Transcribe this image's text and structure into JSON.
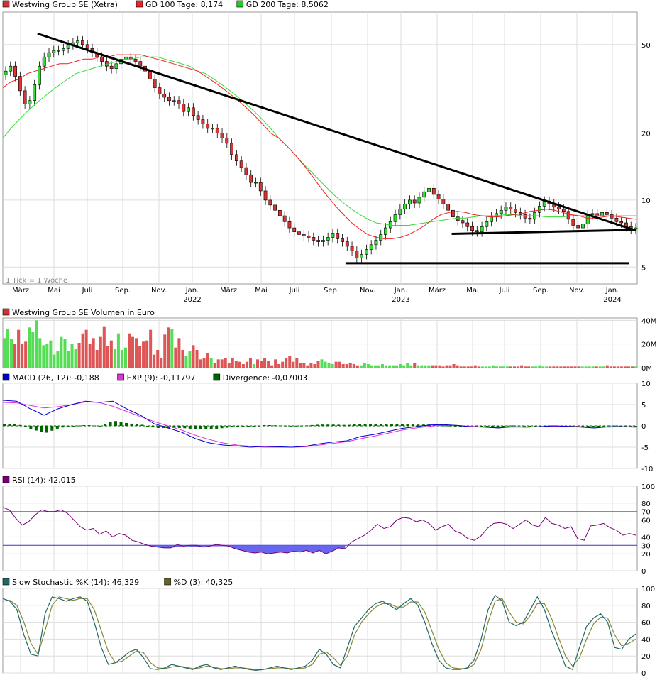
{
  "chart_data": [
    {
      "type": "candlestick",
      "panel": "price",
      "scale": "log",
      "ylim": [
        4.2,
        70
      ],
      "yticks": [
        5,
        10,
        20,
        50
      ],
      "legend": [
        {
          "label": "Westwing Group SE (Xetra)",
          "color": "#cc3333"
        },
        {
          "label": "GD 100 Tage: 8,174",
          "color": "#ee2222"
        },
        {
          "label": "GD 200 Tage: 8,5062",
          "color": "#22cc22"
        }
      ],
      "note": "1 Tick = 1 Woche",
      "x_month_labels": [
        "März",
        "Mai",
        "Juli",
        "Sep.",
        "Nov.",
        "Jan.",
        "März",
        "Mai",
        "Juli",
        "Sep.",
        "Nov.",
        "Jan.",
        "März",
        "Mai",
        "Juli",
        "Sep.",
        "Nov.",
        "Jan."
      ],
      "x_year_labels": [
        "2022",
        "2023",
        "2024"
      ],
      "close": [
        38,
        40,
        36,
        31,
        27,
        28,
        33,
        40,
        44,
        46,
        47,
        47,
        48,
        50,
        51,
        52,
        50,
        48,
        46,
        44,
        42,
        40,
        39,
        41,
        43,
        44,
        43,
        42,
        40,
        38,
        35,
        32,
        30,
        29,
        28,
        28,
        27,
        25,
        26,
        24,
        23,
        22,
        21,
        21,
        20,
        19,
        18,
        16,
        15,
        14,
        13,
        12,
        12,
        11,
        10,
        9.5,
        9,
        8.5,
        8,
        7.5,
        7.2,
        7,
        6.9,
        6.8,
        6.6,
        6.5,
        6.6,
        6.8,
        7.1,
        6.7,
        6.5,
        6.2,
        5.9,
        5.5,
        5.7,
        6,
        6.3,
        6.6,
        7,
        7.5,
        8,
        8.6,
        9.1,
        9.6,
        10,
        9.7,
        10.3,
        10.9,
        11.3,
        10.6,
        10.1,
        9.6,
        9,
        8.4,
        8.1,
        7.9,
        7.6,
        7.3,
        7.2,
        7.6,
        8,
        8.4,
        8.7,
        9,
        9.3,
        9.1,
        8.8,
        8.6,
        8.3,
        8.2,
        8.8,
        9.4,
        9.9,
        9.6,
        9.3,
        9.1,
        8.9,
        8.2,
        7.7,
        7.5,
        7.8,
        8.6,
        8.7,
        8.5,
        8.8,
        8.6,
        8.3,
        8,
        7.9,
        7.6,
        7.4,
        7.5
      ],
      "gd100": [
        32,
        34,
        35,
        37,
        38,
        39,
        40,
        41,
        41,
        42,
        43,
        43,
        44,
        44,
        45,
        45,
        45,
        45,
        44,
        43,
        42,
        41,
        40,
        39,
        38,
        36,
        34,
        32,
        30,
        28,
        26,
        24,
        22,
        20,
        19,
        17.5,
        16,
        14.5,
        13,
        11.6,
        10.4,
        9.4,
        8.6,
        7.9,
        7.4,
        7,
        6.8,
        6.7,
        6.7,
        6.8,
        7,
        7.3,
        7.7,
        8.2,
        8.6,
        8.8,
        8.9,
        8.8,
        8.6,
        8.5,
        8.4,
        8.4,
        8.5,
        8.6,
        8.7,
        8.9,
        9,
        9.1,
        9,
        8.8,
        8.6,
        8.5,
        8.3,
        8.3,
        8.4,
        8.5,
        8.4,
        8.3,
        8.2
      ],
      "gd200": [
        19,
        21,
        23,
        25,
        27,
        29,
        31,
        33,
        35,
        37,
        38,
        39,
        40,
        41,
        42,
        43,
        43,
        44,
        44,
        44,
        43,
        42,
        41,
        40,
        38,
        37,
        35,
        33,
        31,
        29,
        27,
        25,
        23,
        21,
        19,
        17.5,
        16,
        14.6,
        13.4,
        12.3,
        11.3,
        10.4,
        9.7,
        9.1,
        8.6,
        8.2,
        7.9,
        7.8,
        7.7,
        7.7,
        7.7,
        7.8,
        7.9,
        8,
        8.1,
        8.2,
        8.3,
        8.3,
        8.4,
        8.5,
        8.5,
        8.5,
        8.6,
        8.6,
        8.5,
        8.5,
        8.5,
        8.4,
        8.4,
        8.4,
        8.5,
        8.5,
        8.5,
        8.5,
        8.5,
        8.5,
        8.5,
        8.5,
        8.5
      ],
      "trendlines": [
        {
          "from": [
            9,
            56
          ],
          "to": [
            178,
            7.3
          ]
        },
        {
          "from": [
            126,
            7.05
          ],
          "to": [
            178,
            7.35
          ]
        },
        {
          "from": [
            96,
            5.2
          ],
          "to": [
            176,
            5.2
          ]
        }
      ]
    },
    {
      "type": "bar",
      "panel": "volume",
      "legend": [
        {
          "label": "Westwing Group SE Volumen in Euro",
          "color": "#cc3333"
        }
      ],
      "yticks": [
        "0M",
        "20M",
        "40M"
      ],
      "ylim": [
        0,
        42
      ],
      "values": [
        25,
        33,
        24,
        20,
        32,
        20,
        22,
        34,
        30,
        40,
        25,
        19,
        20,
        23,
        11,
        14,
        26,
        24,
        14,
        20,
        16,
        21,
        29,
        32,
        20,
        25,
        15,
        26,
        35,
        18,
        23,
        16,
        29,
        15,
        17,
        29,
        26,
        25,
        18,
        22,
        23,
        32,
        11,
        15,
        8,
        28,
        34,
        33,
        17,
        25,
        15,
        10,
        14,
        19,
        15,
        7,
        8,
        12,
        8,
        4,
        7,
        7,
        8,
        4,
        8,
        6,
        5,
        3,
        5,
        8,
        3,
        7,
        6,
        8,
        6,
        2,
        7,
        3,
        5,
        8,
        10,
        5,
        8,
        4,
        4,
        2,
        4,
        3,
        6,
        7,
        5,
        4,
        3,
        5,
        5,
        3,
        3,
        4,
        3,
        2,
        2,
        4,
        3,
        2,
        2,
        2,
        3,
        2,
        2,
        2,
        2,
        3,
        2,
        4,
        2,
        4,
        2,
        2,
        2,
        2,
        2,
        2,
        2,
        1,
        2,
        2,
        3,
        2,
        1,
        1,
        1,
        1,
        2,
        1,
        1,
        1,
        1,
        2,
        1,
        1,
        1,
        1,
        1,
        1,
        1,
        2,
        1,
        1,
        1,
        1,
        2,
        1,
        1,
        1,
        1,
        1,
        1,
        1,
        1,
        1,
        1,
        1,
        1,
        1,
        1,
        1,
        1,
        1,
        1,
        2,
        1,
        1,
        1,
        1,
        1,
        1,
        1,
        1
      ]
    },
    {
      "type": "line",
      "panel": "macd",
      "legend": [
        {
          "label": "MACD (26, 12): -0,188",
          "color": "#0000cc"
        },
        {
          "label": "EXP (9): -0,11797",
          "color": "#dd33dd"
        },
        {
          "label": "Divergence: -0,07003",
          "color": "#006600"
        }
      ],
      "ylim": [
        -10,
        10
      ],
      "yticks": [
        10,
        5,
        0,
        -5,
        -10
      ],
      "macd": [
        6,
        5.8,
        4,
        2.5,
        4,
        5,
        5.8,
        5.5,
        5.8,
        4,
        2.5,
        0.5,
        -0.5,
        -1.5,
        -3,
        -4,
        -4.5,
        -4.7,
        -5,
        -4.8,
        -4.9,
        -5,
        -4.8,
        -4.2,
        -3.8,
        -3.5,
        -2.5,
        -2,
        -1.3,
        -0.6,
        -0.2,
        0.2,
        0.3,
        0.1,
        -0.2,
        -0.3,
        -0.5,
        -0.2,
        -0.3,
        -0.2,
        0,
        -0.1,
        -0.3,
        -0.5,
        -0.2,
        -0.2,
        -0.3
      ],
      "signal": [
        5.5,
        5.4,
        4.8,
        4.2,
        4.5,
        5,
        5.6,
        5.5,
        4.6,
        3.4,
        2.2,
        1,
        0,
        -1,
        -2.2,
        -3.2,
        -4,
        -4.5,
        -4.8,
        -5,
        -5,
        -5,
        -4.9,
        -4.5,
        -4.1,
        -3.7,
        -3,
        -2.4,
        -1.7,
        -1,
        -0.5,
        -0.1,
        0.2,
        0.1,
        -0.1,
        -0.3,
        -0.4,
        -0.3,
        -0.3,
        -0.2,
        -0.1,
        -0.1,
        -0.2,
        -0.3,
        -0.3,
        -0.2,
        -0.2
      ],
      "divergence": [
        0.5,
        0.4,
        -0.8,
        -1.7,
        -0.5,
        0,
        0.2,
        0,
        1.2,
        0.6,
        0.3,
        -0.5,
        -0.5,
        -0.5,
        -0.8,
        -0.8,
        -0.5,
        -0.2,
        -0.2,
        0.2,
        0.1,
        0,
        0.1,
        0.3,
        0.3,
        0.2,
        0.5,
        0.4,
        0.4,
        0.4,
        0.3,
        0.3,
        0.1,
        0,
        -0.1,
        0,
        -0.1,
        0.1,
        0,
        0,
        0.1,
        0,
        -0.1,
        -0.2,
        0.1,
        0,
        -0.1
      ]
    },
    {
      "type": "line",
      "panel": "rsi",
      "legend": [
        {
          "label": "RSI (14): 42,015",
          "color": "#770077"
        }
      ],
      "ylim": [
        0,
        100
      ],
      "yticks": [
        100,
        80,
        60,
        40,
        20,
        0
      ],
      "bands": [
        {
          "value": 70,
          "color": "#dd3333"
        },
        {
          "value": 30,
          "color": "#3333dd"
        }
      ],
      "values": [
        75,
        72,
        62,
        54,
        58,
        66,
        72,
        70,
        70,
        72,
        68,
        60,
        52,
        48,
        50,
        43,
        47,
        40,
        44,
        42,
        36,
        34,
        31,
        29,
        28,
        27,
        27,
        31,
        29,
        30,
        30,
        28,
        29,
        31,
        30,
        29,
        26,
        24,
        22,
        21,
        22,
        20,
        21,
        22,
        21,
        23,
        22,
        24,
        21,
        24,
        20,
        23,
        27,
        26,
        34,
        38,
        42,
        48,
        55,
        50,
        52,
        60,
        63,
        62,
        58,
        60,
        56,
        48,
        52,
        55,
        47,
        44,
        38,
        36,
        41,
        50,
        56,
        57,
        55,
        50,
        55,
        60,
        54,
        52,
        63,
        56,
        54,
        50,
        52,
        38,
        36,
        53,
        54,
        56,
        51,
        48,
        42,
        44,
        42
      ],
      "current": 42
    },
    {
      "type": "line",
      "panel": "stochastic",
      "legend": [
        {
          "label": "Slow Stochastic %K (14): 46,329",
          "color": "#226666"
        },
        {
          "label": "%D (3): 40,325",
          "color": "#666622"
        }
      ],
      "ylim": [
        0,
        100
      ],
      "yticks": [
        100,
        80,
        60,
        40,
        20,
        0
      ],
      "k": [
        88,
        85,
        75,
        45,
        22,
        20,
        70,
        90,
        88,
        85,
        88,
        90,
        85,
        60,
        30,
        10,
        12,
        18,
        25,
        28,
        18,
        5,
        4,
        6,
        10,
        8,
        6,
        4,
        8,
        10,
        6,
        4,
        6,
        8,
        6,
        4,
        3,
        4,
        6,
        8,
        6,
        4,
        6,
        8,
        15,
        28,
        22,
        10,
        6,
        30,
        55,
        65,
        75,
        82,
        85,
        80,
        75,
        82,
        88,
        80,
        60,
        35,
        15,
        6,
        4,
        4,
        6,
        15,
        40,
        75,
        92,
        85,
        60,
        56,
        60,
        75,
        90,
        75,
        50,
        30,
        8,
        4,
        30,
        55,
        65,
        70,
        60,
        30,
        28,
        40,
        46
      ],
      "d": [
        85,
        86,
        80,
        60,
        35,
        22,
        50,
        80,
        90,
        88,
        86,
        88,
        88,
        75,
        50,
        25,
        12,
        14,
        20,
        26,
        24,
        12,
        6,
        5,
        7,
        8,
        7,
        5,
        6,
        8,
        7,
        5,
        5,
        6,
        6,
        5,
        4,
        4,
        5,
        6,
        6,
        5,
        5,
        6,
        10,
        22,
        25,
        18,
        9,
        20,
        45,
        60,
        70,
        78,
        82,
        82,
        78,
        78,
        84,
        84,
        72,
        50,
        28,
        12,
        6,
        5,
        5,
        10,
        28,
        60,
        85,
        88,
        72,
        60,
        58,
        68,
        82,
        82,
        65,
        42,
        20,
        8,
        18,
        40,
        58,
        66,
        65,
        45,
        32,
        35,
        40
      ]
    }
  ]
}
